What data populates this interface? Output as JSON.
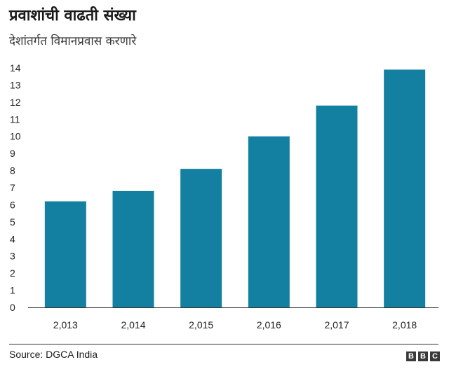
{
  "header": {
    "title": "प्रवाशांची वाढती संख्या",
    "subtitle": "देशांतर्गत विमानप्रवास करणारे"
  },
  "footer": {
    "source": "Source: DGCA India",
    "logo": [
      "B",
      "B",
      "C"
    ]
  },
  "colors": {
    "bar": "#1380a1",
    "axis": "#333333",
    "text": "#222222"
  },
  "chart_data": {
    "type": "bar",
    "categories": [
      "2,013",
      "2,014",
      "2,015",
      "2,016",
      "2,017",
      "2,018"
    ],
    "values": [
      6.2,
      6.8,
      8.1,
      10.0,
      11.8,
      13.9
    ],
    "ylim": [
      0,
      14
    ],
    "yticks": [
      "0",
      "1",
      "2",
      "3",
      "4",
      "5",
      "6",
      "7",
      "8",
      "9",
      "10",
      "11",
      "12",
      "13",
      "14"
    ],
    "grid": false
  }
}
